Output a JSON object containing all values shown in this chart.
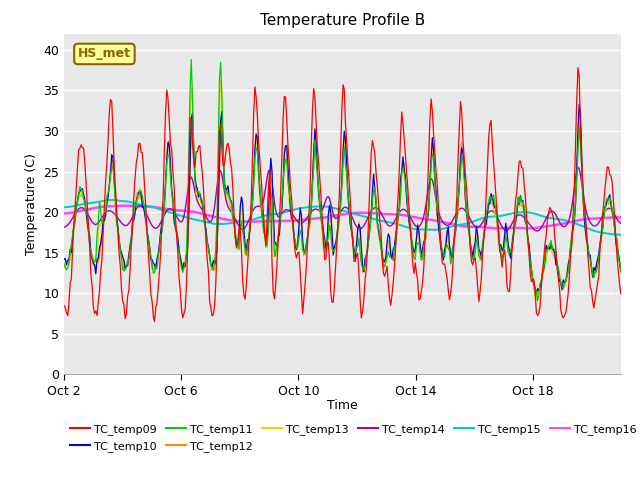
{
  "title": "Temperature Profile B",
  "xlabel": "Time",
  "ylabel": "Temperature (C)",
  "ylim": [
    0,
    42
  ],
  "yticks": [
    0,
    5,
    10,
    15,
    20,
    25,
    30,
    35,
    40
  ],
  "x_tick_labels": [
    "Oct 2",
    "Oct 6",
    "Oct 10",
    "Oct 14",
    "Oct 18"
  ],
  "x_tick_positions": [
    0,
    4,
    8,
    12,
    16
  ],
  "xlim": [
    0,
    19
  ],
  "series_colors": {
    "TC_temp09": "#ff0000",
    "TC_temp10": "#0000dd",
    "TC_temp11": "#00cc00",
    "TC_temp12": "#ff8800",
    "TC_temp13": "#dddd00",
    "TC_temp14": "#aa00aa",
    "TC_temp15": "#00cccc",
    "TC_temp16": "#ff44ff"
  },
  "legend_label": "HS_met",
  "legend_bg": "#ffff99",
  "legend_border": "#886600",
  "plot_bg": "#e8e8e8",
  "title_fontsize": 11,
  "axis_label_fontsize": 9,
  "tick_fontsize": 9,
  "legend_fontsize": 8,
  "figwidth": 6.4,
  "figheight": 4.8,
  "dpi": 100
}
